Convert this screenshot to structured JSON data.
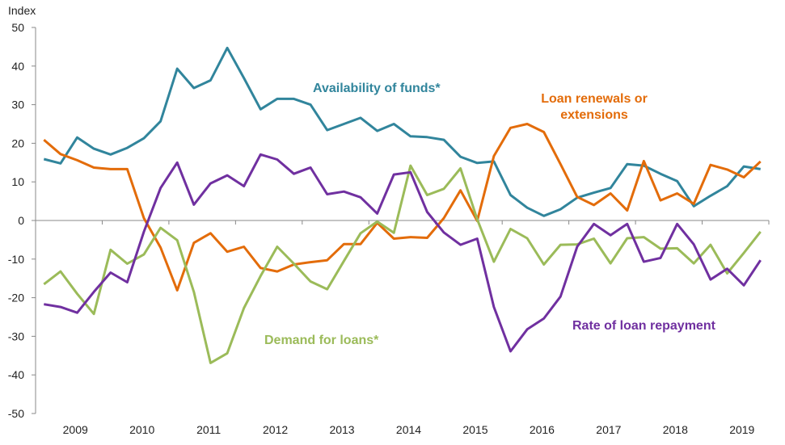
{
  "chart_data": {
    "type": "line",
    "ylabel": "Index",
    "ylim": [
      -50,
      50
    ],
    "yticks": [
      50,
      40,
      30,
      20,
      10,
      0,
      -10,
      -20,
      -30,
      -40,
      -50
    ],
    "xtick_labels": [
      "2009",
      "2010",
      "2011",
      "2012",
      "2013",
      "2014",
      "2015",
      "2016",
      "2017",
      "2018",
      "2019"
    ],
    "x_frequency": "quarterly",
    "grid": false,
    "legend": "inline labels",
    "series": [
      {
        "name": "Availability of funds*",
        "color": "#31859C",
        "values": [
          15.9,
          14.8,
          21.5,
          18.6,
          17.1,
          18.8,
          21.3,
          25.7,
          39.3,
          34.3,
          36.3,
          44.7,
          36.9,
          28.8,
          31.5,
          31.5,
          30.0,
          23.4,
          25.0,
          26.6,
          23.2,
          25.0,
          21.8,
          21.6,
          20.9,
          16.5,
          14.9,
          15.3,
          6.6,
          3.3,
          1.2,
          2.9,
          5.9,
          7.2,
          8.4,
          14.6,
          14.2,
          12.1,
          10.2,
          3.7,
          6.4,
          8.9,
          14.0,
          13.3
        ]
      },
      {
        "name": "Loan renewals or extensions",
        "color": "#E36C0A",
        "values": [
          20.9,
          17.2,
          15.6,
          13.7,
          13.3,
          13.3,
          0.6,
          -7.0,
          -18.1,
          -5.8,
          -3.3,
          -8.1,
          -6.8,
          -12.3,
          -13.2,
          -11.4,
          -10.8,
          -10.3,
          -6.1,
          -6.1,
          -0.6,
          -4.7,
          -4.3,
          -4.5,
          0.6,
          7.8,
          -0.1,
          16.7,
          24.0,
          25.0,
          22.9,
          14.6,
          6.1,
          4.0,
          7.0,
          2.6,
          15.4,
          5.2,
          7.0,
          4.3,
          14.4,
          13.2,
          11.2,
          15.3
        ]
      },
      {
        "name": "Demand for loans*",
        "color": "#9BBB59",
        "values": [
          -16.5,
          -13.2,
          -19.0,
          -24.2,
          -7.6,
          -11.2,
          -8.8,
          -1.9,
          -5.1,
          -18.5,
          -36.9,
          -34.4,
          -22.7,
          -14.4,
          -6.8,
          -11.2,
          -15.8,
          -17.8,
          -10.5,
          -3.3,
          -0.3,
          -3.2,
          14.2,
          6.6,
          8.2,
          13.5,
          0.3,
          -10.7,
          -2.2,
          -4.6,
          -11.4,
          -6.3,
          -6.2,
          -4.7,
          -11.1,
          -4.6,
          -4.3,
          -7.3,
          -7.2,
          -11.1,
          -6.3,
          -13.7,
          -8.4,
          -2.9
        ]
      },
      {
        "name": "Rate of loan repayment",
        "color": "#7030A0",
        "values": [
          -21.7,
          -22.4,
          -23.9,
          -18.5,
          -13.5,
          -16.0,
          -2.9,
          8.4,
          15.0,
          4.1,
          9.6,
          11.7,
          8.9,
          17.1,
          15.8,
          12.1,
          13.7,
          6.8,
          7.5,
          6.0,
          1.8,
          11.9,
          12.5,
          2.2,
          -3.1,
          -6.3,
          -4.7,
          -22.4,
          -33.9,
          -28.2,
          -25.4,
          -19.7,
          -6.8,
          -0.9,
          -3.8,
          -0.9,
          -10.7,
          -9.7,
          -0.9,
          -6.2,
          -15.3,
          -12.5,
          -16.8,
          -10.3
        ]
      }
    ]
  }
}
